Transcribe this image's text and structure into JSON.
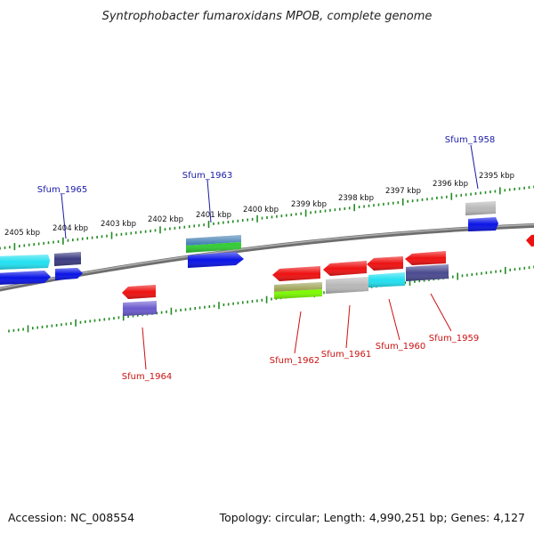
{
  "title": "Syntrophobacter fumaroxidans MPOB, complete genome",
  "accession_text": "Accession: NC_008554",
  "info_text": "Topology: circular; Length: 4,990,251 bp; Genes: 4,127",
  "kbp_labels": [
    "2405 kbp",
    "2404 kbp",
    "2403 kbp",
    "2402 kbp",
    "2401 kbp",
    "2400 kbp",
    "2399 kbp",
    "2398 kbp",
    "2397 kbp",
    "2396 kbp",
    "2395 kbp"
  ],
  "forward_genes": [
    "Sfum_1965",
    "Sfum_1963",
    "Sfum_1958"
  ],
  "reverse_genes": [
    "Sfum_1964",
    "Sfum_1962",
    "Sfum_1961",
    "Sfum_1960",
    "Sfum_1959"
  ],
  "colors": {
    "backbone": "#8a8a8a",
    "tick": "#228b22",
    "forward_label": "#1a1aa6",
    "reverse_label": "#cc1111",
    "cds_forward": "#0a14e6",
    "cds_reverse": "#ee1111",
    "cog_cyan": "#22e0f0",
    "cog_navy": "#3a3a80",
    "cog_purple": "#6a5acd",
    "cog_gray": "#b8b8b8",
    "cog_olive": "#9aa050",
    "cog_green": "#7cfc00",
    "cog_steel": "#4682b4",
    "cog_mid_green": "#32cd32"
  }
}
